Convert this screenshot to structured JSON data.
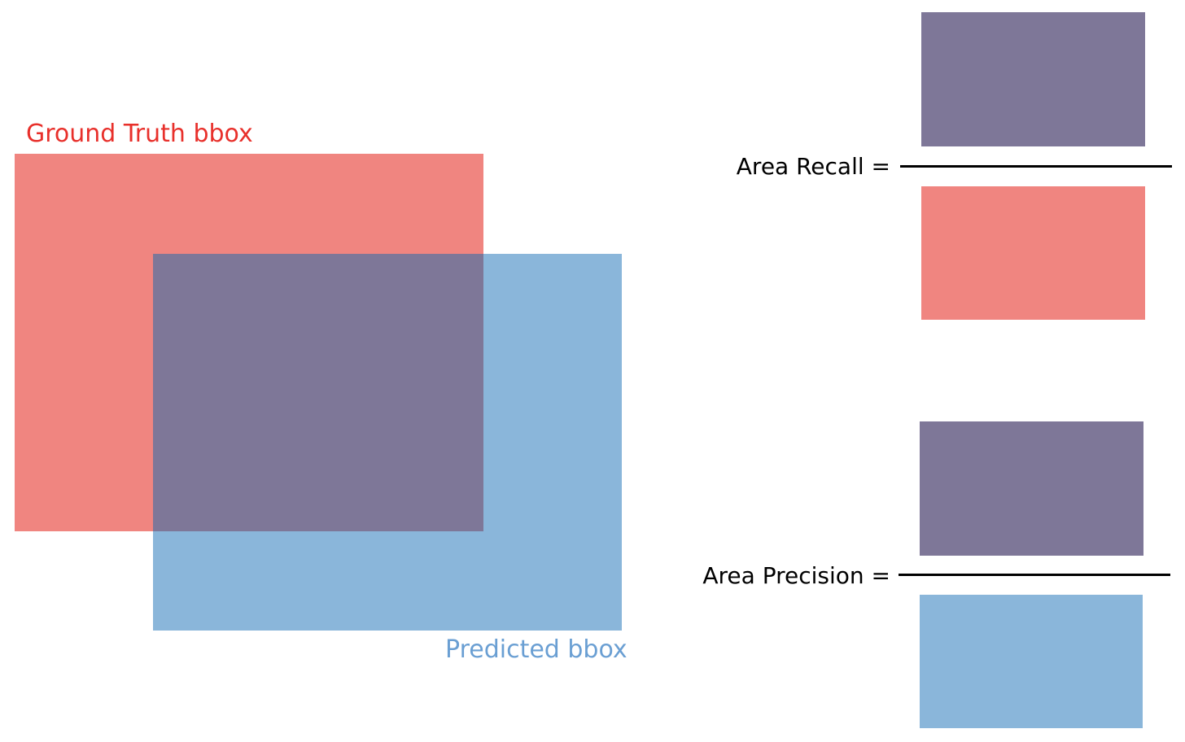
{
  "diagram": {
    "colors": {
      "ground_truth": "#f08580",
      "predicted": "#8ab6da",
      "intersection": "#7e7798",
      "ground_truth_label": "#e8302b",
      "predicted_label": "#6a9fd3",
      "text": "#000000",
      "background": "#ffffff"
    },
    "labels": {
      "ground_truth": "Ground Truth bbox",
      "predicted": "Predicted bbox"
    },
    "formulas": {
      "recall": {
        "label": "Area Recall =",
        "numerator": "intersection",
        "denominator": "ground_truth"
      },
      "precision": {
        "label": "Area Precision =",
        "numerator": "intersection",
        "denominator": "predicted"
      }
    }
  }
}
